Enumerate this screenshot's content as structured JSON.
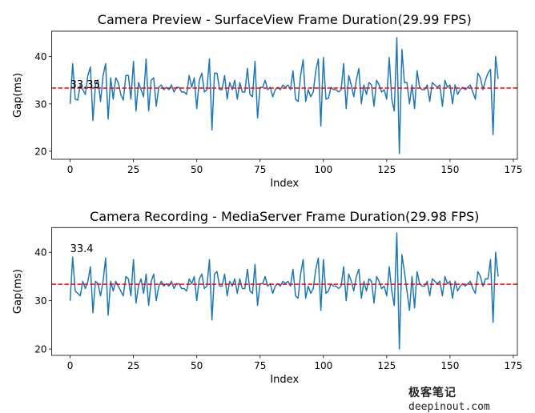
{
  "chart_data": [
    {
      "type": "line",
      "title": "Camera Preview - SurfaceView Frame Duration(29.99 FPS)",
      "xlabel": "Index",
      "ylabel": "Gap(ms)",
      "xlim": [
        -7.3,
        176.6
      ],
      "ylim": [
        18.3,
        45.35
      ],
      "xticks": [
        0,
        25,
        50,
        75,
        100,
        125,
        150,
        175
      ],
      "yticks": [
        20,
        30,
        40
      ],
      "grid": false,
      "line_color": "#1f77b4",
      "mean": 33.35,
      "mean_label": "33.35",
      "mean_color": "#ff0000",
      "values": [
        30,
        38.5,
        31,
        30.8,
        34,
        33,
        32,
        36,
        37.8,
        26.5,
        34,
        35,
        30.5,
        36,
        38.5,
        26.8,
        35.5,
        31,
        35.5,
        34.5,
        32,
        30.8,
        36,
        36,
        31,
        39,
        28.5,
        34.5,
        33,
        31.5,
        39.5,
        28.5,
        35,
        35.5,
        29.5,
        33.5,
        34,
        33,
        33.5,
        33,
        34,
        32.5,
        33.5,
        33.5,
        32.5,
        32.5,
        32,
        36,
        33.5,
        35.5,
        29,
        35,
        36.5,
        32.5,
        33,
        39.5,
        24.5,
        36.5,
        36.5,
        33,
        33,
        36,
        31,
        34.5,
        33,
        35,
        31,
        34.5,
        32.5,
        32.5,
        37.5,
        32,
        31.5,
        39,
        27,
        33.5,
        33.5,
        35,
        33,
        33.5,
        31.5,
        33,
        33.5,
        33,
        34,
        33.5,
        34,
        33,
        37,
        31,
        30.5,
        36,
        39.3,
        30.5,
        33,
        31.5,
        32.5,
        37,
        39.5,
        25.3,
        39.8,
        31,
        31.2,
        33.5,
        33,
        33,
        32.5,
        33,
        38.5,
        29,
        36,
        34,
        31.5,
        35,
        37.5,
        30,
        34,
        32,
        34.5,
        34,
        29.5,
        35,
        34,
        32.5,
        33,
        31,
        39.8,
        31,
        28.5,
        44,
        19.5,
        41.5,
        34.5,
        34.5,
        30,
        34,
        29,
        37,
        33.5,
        33,
        33,
        34,
        30.5,
        34.5,
        34,
        33.5,
        34,
        29.5,
        35,
        33.5,
        34,
        30,
        34,
        32,
        33,
        33.5,
        33,
        33.5,
        34,
        32.5,
        31,
        36.5,
        35.5,
        33,
        35,
        36.5,
        37.3,
        23.5,
        40,
        35.3
      ]
    },
    {
      "type": "line",
      "title": "Camera Recording - MediaServer Frame Duration(29.98 FPS)",
      "xlabel": "Index",
      "ylabel": "Gap(ms)",
      "xlim": [
        -7.3,
        176.6
      ],
      "ylim": [
        18.7,
        45.1
      ],
      "xticks": [
        0,
        25,
        50,
        75,
        100,
        125,
        150,
        175
      ],
      "yticks": [
        20,
        30,
        40
      ],
      "grid": false,
      "line_color": "#1f77b4",
      "mean": 33.4,
      "mean_label": "33.4",
      "mean_color": "#ff0000",
      "values": [
        30,
        39,
        32,
        31.5,
        31,
        34,
        32.5,
        34,
        37,
        27.5,
        34,
        33.5,
        31,
        34,
        38.8,
        27,
        34,
        32,
        34,
        33,
        32,
        31,
        35,
        34.5,
        31,
        38.5,
        29.5,
        33,
        34.5,
        31.5,
        35.5,
        29,
        34,
        35.5,
        30,
        33,
        34,
        33,
        33.5,
        33,
        34,
        32.5,
        33.5,
        33.5,
        32.5,
        32.5,
        32,
        34.5,
        33.5,
        35,
        30,
        34.5,
        35.5,
        32.5,
        33,
        38.5,
        26,
        35.5,
        36,
        33,
        33,
        35.5,
        31,
        34,
        33,
        34.5,
        31.5,
        34.5,
        32.5,
        32.5,
        36.5,
        32,
        31.5,
        37.5,
        29,
        33.5,
        33.5,
        35,
        33,
        33.5,
        31.5,
        33,
        33.5,
        33,
        34,
        33.5,
        34,
        33,
        36.5,
        31,
        30.5,
        35.5,
        38.5,
        30.5,
        33,
        31.5,
        32.5,
        36.5,
        38.8,
        28,
        38.5,
        31.5,
        32,
        33.5,
        33,
        33,
        32.5,
        33,
        37,
        30,
        35.5,
        34,
        32,
        35,
        36.5,
        30.5,
        34,
        32,
        34.5,
        34,
        29.5,
        35,
        34,
        32.5,
        33,
        31,
        37,
        32,
        29,
        44,
        20,
        39.5,
        36,
        32,
        28,
        35,
        28.5,
        36,
        33.5,
        33,
        33,
        34,
        31,
        34.5,
        34,
        33.5,
        34,
        31,
        35,
        33.5,
        34,
        30.5,
        34,
        32,
        33,
        33.5,
        33,
        33.5,
        34,
        32.5,
        31.5,
        36,
        35,
        33,
        34.5,
        34.5,
        38.5,
        25.5,
        40,
        35
      ]
    }
  ],
  "watermark": {
    "cn": "极客笔记",
    "en": "deepinout.com"
  }
}
